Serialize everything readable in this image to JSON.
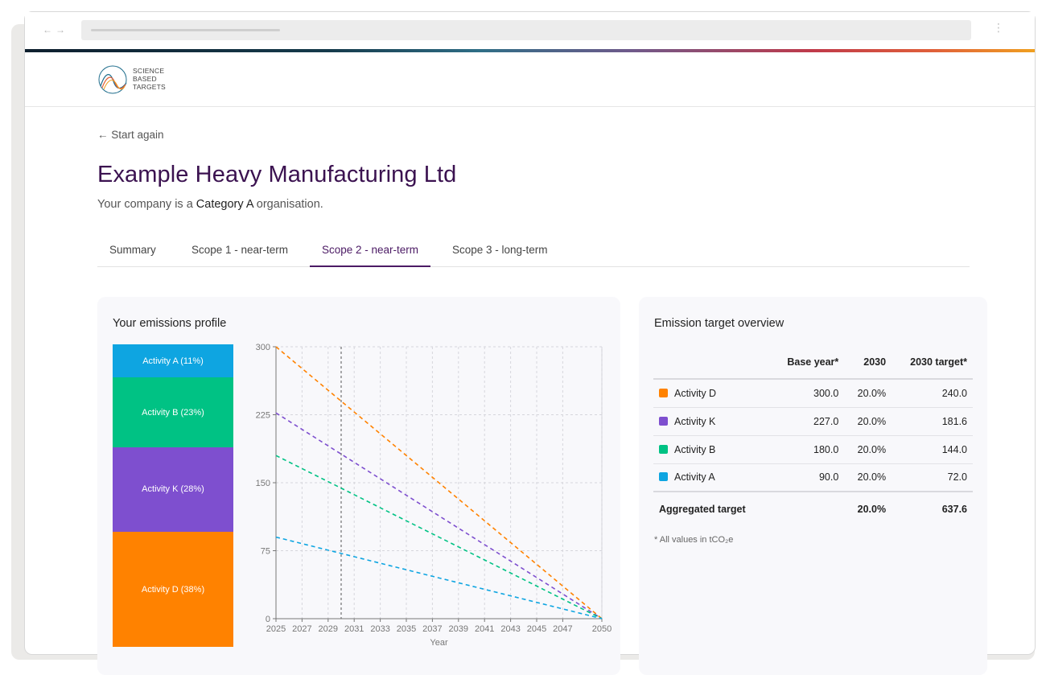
{
  "logo": {
    "lines": [
      "SCIENCE",
      "BASED",
      "TARGETS"
    ],
    "icon": "sbti-logo-icon"
  },
  "back_link": {
    "arrow": "←",
    "label": "Start again"
  },
  "company": {
    "name": "Example Heavy Manufacturing Ltd",
    "subtitle_prefix": "Your company is a",
    "category": "Category A",
    "subtitle_suffix": "organisation."
  },
  "tabs": [
    {
      "label": "Summary",
      "active": false
    },
    {
      "label": "Scope 1 - near-term",
      "active": false
    },
    {
      "label": "Scope 2 - near-term",
      "active": true
    },
    {
      "label": "Scope 3 - long-term",
      "active": false
    }
  ],
  "profile": {
    "title": "Your emissions profile",
    "segments": [
      {
        "label": "Activity A (11%)",
        "share": 11,
        "color": "#0ea5e1"
      },
      {
        "label": "Activity B (23%)",
        "share": 23,
        "color": "#00c284"
      },
      {
        "label": "Activity K (28%)",
        "share": 28,
        "color": "#7e4fcf"
      },
      {
        "label": "Activity D (38%)",
        "share": 38,
        "color": "#ff8200"
      }
    ]
  },
  "chart_data": {
    "type": "line",
    "xlabel": "Year",
    "x_ticks": [
      2025,
      2027,
      2029,
      2031,
      2033,
      2035,
      2037,
      2039,
      2041,
      2043,
      2045,
      2047,
      2050
    ],
    "y_ticks": [
      0,
      75,
      150,
      225,
      300
    ],
    "xlim": [
      2025,
      2050
    ],
    "ylim": [
      0,
      300
    ],
    "reference_year": 2030,
    "grid": true,
    "line_style": "dashed",
    "series": [
      {
        "name": "Activity D",
        "color": "#ff8200",
        "x": [
          2025,
          2050
        ],
        "y": [
          300,
          0
        ]
      },
      {
        "name": "Activity K",
        "color": "#7e4fcf",
        "x": [
          2025,
          2050
        ],
        "y": [
          227,
          0
        ]
      },
      {
        "name": "Activity B",
        "color": "#00c284",
        "x": [
          2025,
          2050
        ],
        "y": [
          180,
          0
        ]
      },
      {
        "name": "Activity A",
        "color": "#0ea5e1",
        "x": [
          2025,
          2050
        ],
        "y": [
          90,
          0
        ]
      }
    ]
  },
  "overview": {
    "title": "Emission target overview",
    "columns": [
      "",
      "Base year*",
      "2030",
      "2030 target*"
    ],
    "rows": [
      {
        "name": "Activity D",
        "color": "#ff8200",
        "base": "300.0",
        "pct": "20.0%",
        "target": "240.0"
      },
      {
        "name": "Activity K",
        "color": "#7e4fcf",
        "base": "227.0",
        "pct": "20.0%",
        "target": "181.6"
      },
      {
        "name": "Activity B",
        "color": "#00c284",
        "base": "180.0",
        "pct": "20.0%",
        "target": "144.0"
      },
      {
        "name": "Activity A",
        "color": "#0ea5e1",
        "base": "90.0",
        "pct": "20.0%",
        "target": "72.0"
      }
    ],
    "aggregate": {
      "label": "Aggregated target",
      "base": "",
      "pct": "20.0%",
      "target": "637.6"
    },
    "footnote": "* All values in tCO₂e"
  }
}
